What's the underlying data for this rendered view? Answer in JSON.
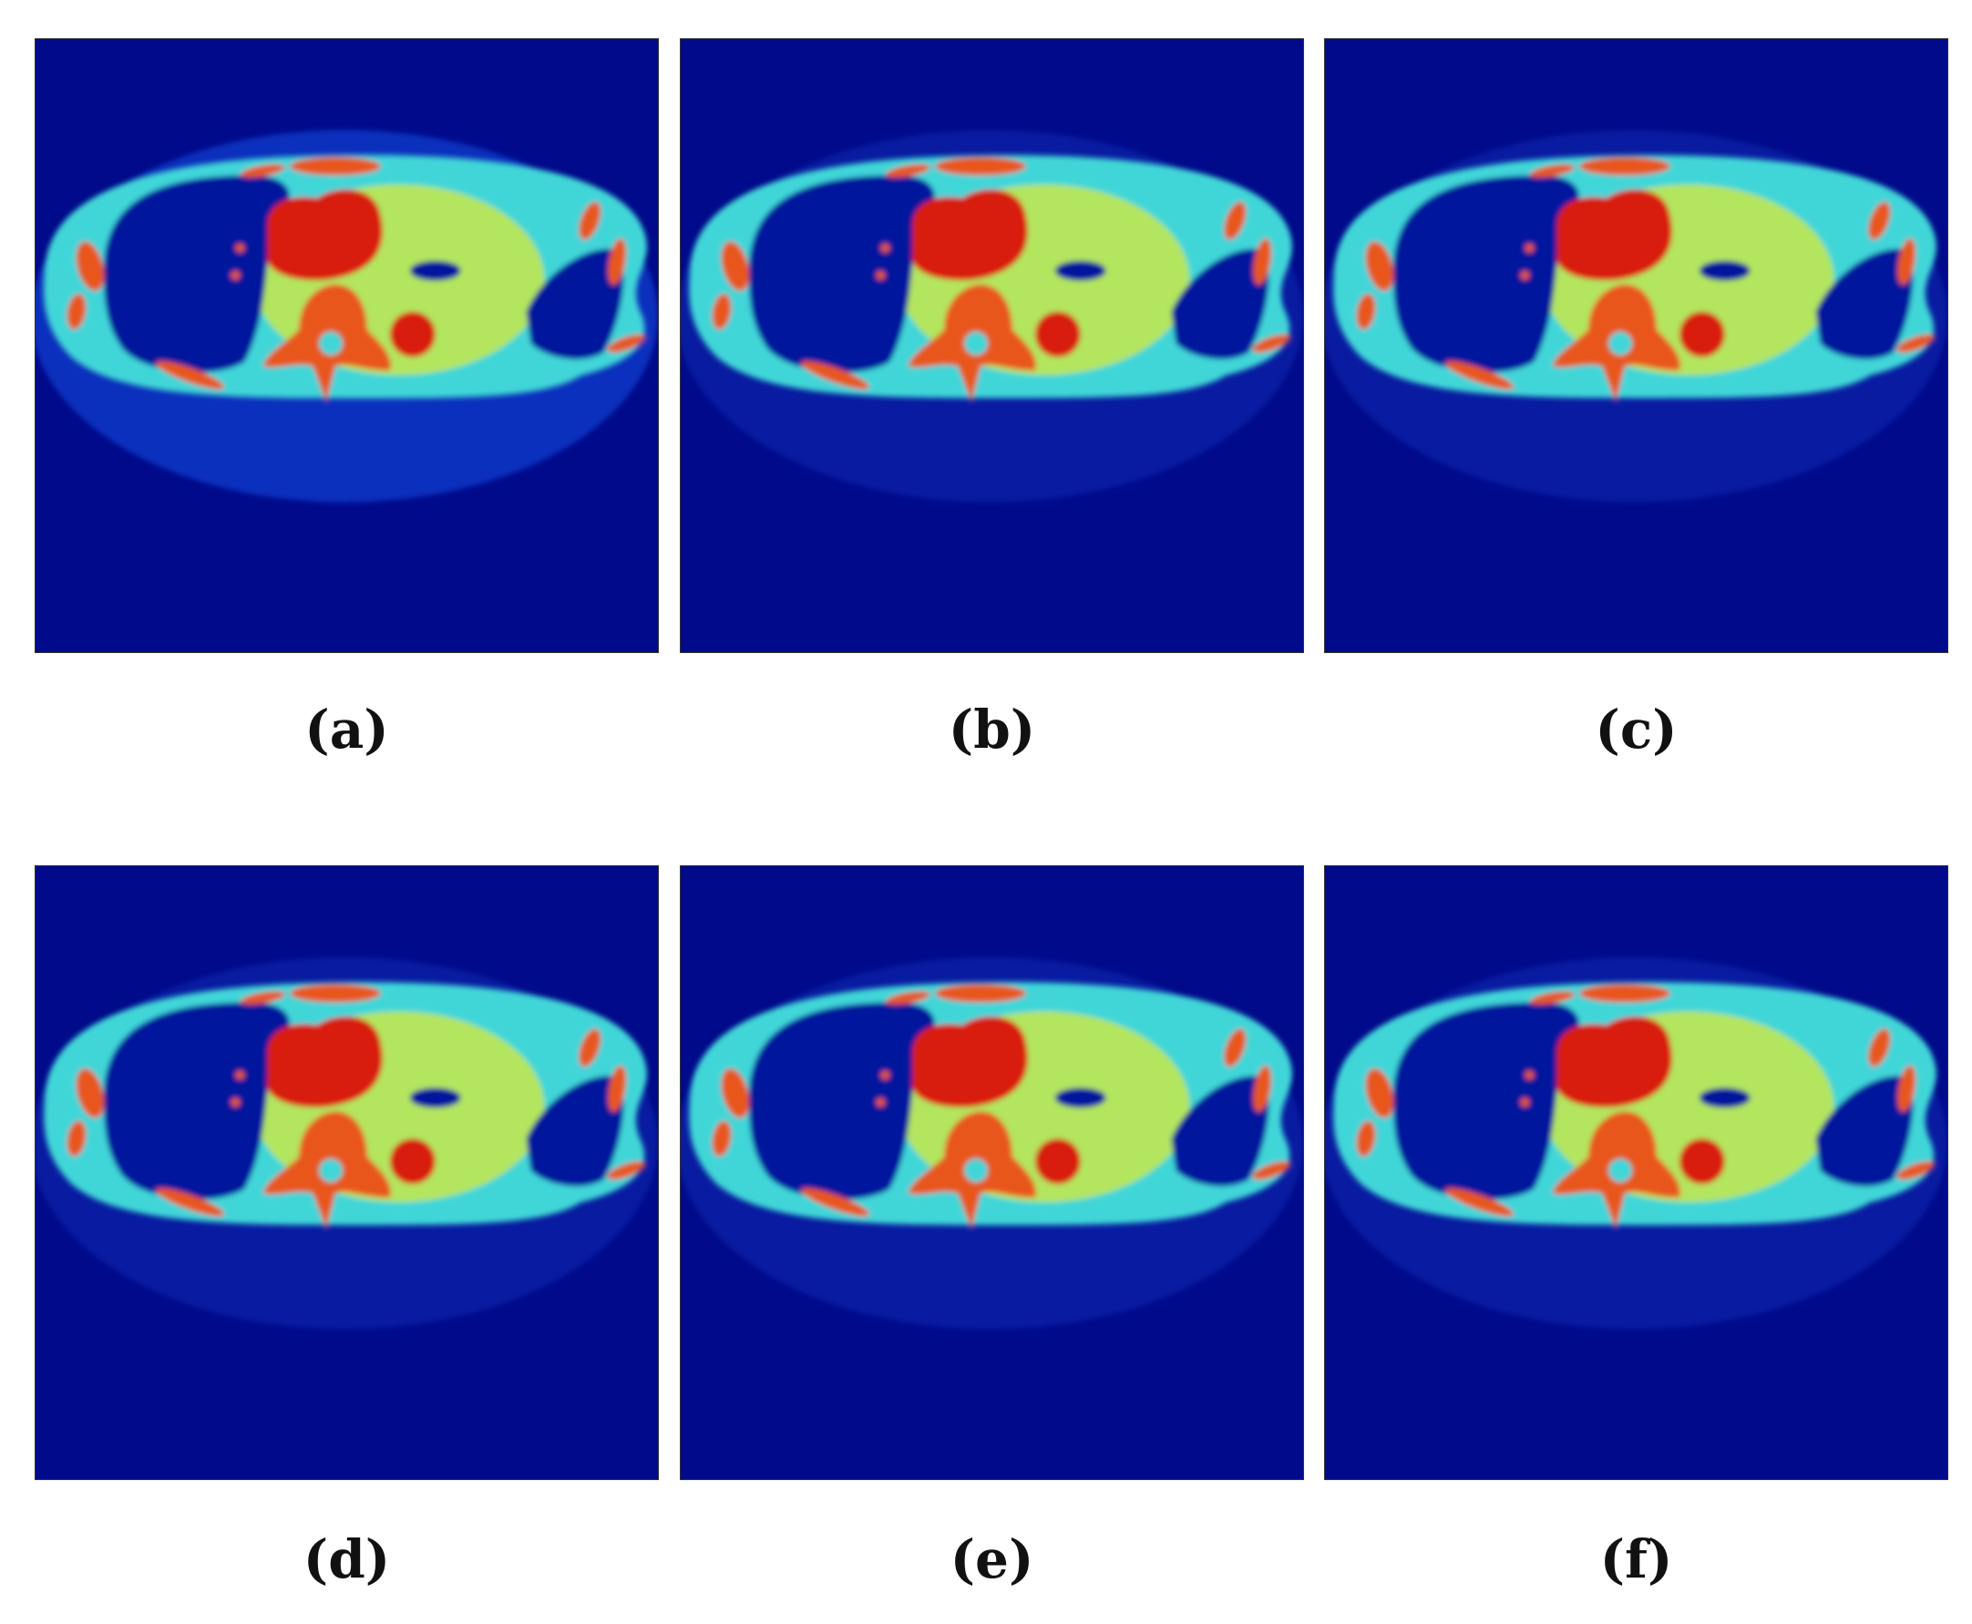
{
  "figure": {
    "panels": [
      {
        "caption": "(a)"
      },
      {
        "caption": "(b)"
      },
      {
        "caption": "(c)"
      },
      {
        "caption": "(d)"
      },
      {
        "caption": "(e)"
      },
      {
        "caption": "(f)"
      }
    ],
    "colors": {
      "background": "#000a8a",
      "body": "#3fd6d8",
      "soft_tissue": "#c8e84a",
      "lung": "#02129c",
      "heart": "#d81a10",
      "bone": "#e8561a",
      "rim": "#1a4ee8"
    }
  }
}
